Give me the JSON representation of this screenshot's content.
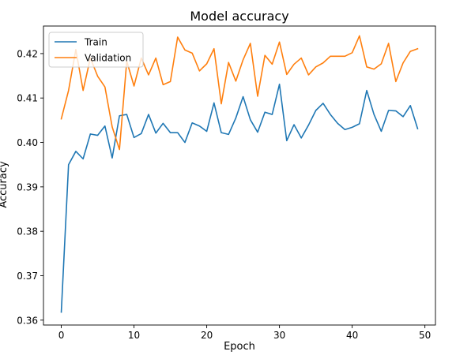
{
  "chart_data": {
    "type": "line",
    "title": "Model accuracy",
    "xlabel": "Epoch",
    "ylabel": "Accuracy",
    "xlim": [
      -2.45,
      51.45
    ],
    "ylim": [
      0.3589,
      0.4262
    ],
    "xticks": [
      0,
      10,
      20,
      30,
      40,
      50
    ],
    "yticks": [
      0.36,
      0.37,
      0.38,
      0.39,
      0.4,
      0.41,
      0.42
    ],
    "ytick_labels": [
      "0.36",
      "0.37",
      "0.38",
      "0.39",
      "0.40",
      "0.41",
      "0.42"
    ],
    "grid": false,
    "legend_position": "top-left",
    "x": [
      0,
      1,
      2,
      3,
      4,
      5,
      6,
      7,
      8,
      9,
      10,
      11,
      12,
      13,
      14,
      15,
      16,
      17,
      18,
      19,
      20,
      21,
      22,
      23,
      24,
      25,
      26,
      27,
      28,
      29,
      30,
      31,
      32,
      33,
      34,
      35,
      36,
      37,
      38,
      39,
      40,
      41,
      42,
      43,
      44,
      45,
      46,
      47,
      48,
      49
    ],
    "series": [
      {
        "name": "Train",
        "color": "#1f77b4",
        "values": [
          0.3618,
          0.395,
          0.398,
          0.3963,
          0.4019,
          0.4016,
          0.4037,
          0.3965,
          0.406,
          0.4063,
          0.4011,
          0.402,
          0.4063,
          0.4021,
          0.4043,
          0.4022,
          0.4022,
          0.4,
          0.4044,
          0.4037,
          0.4025,
          0.4089,
          0.4022,
          0.4018,
          0.4055,
          0.4103,
          0.4051,
          0.4023,
          0.4068,
          0.4063,
          0.4131,
          0.4004,
          0.404,
          0.401,
          0.4039,
          0.4072,
          0.4088,
          0.4063,
          0.4043,
          0.4029,
          0.4034,
          0.4042,
          0.4117,
          0.4063,
          0.4025,
          0.4072,
          0.4071,
          0.4058,
          0.4083,
          0.4031
        ]
      },
      {
        "name": "Validation",
        "color": "#ff7f0e",
        "values": [
          0.4053,
          0.4117,
          0.4209,
          0.4117,
          0.419,
          0.4149,
          0.4125,
          0.4035,
          0.3984,
          0.4183,
          0.4127,
          0.419,
          0.4152,
          0.419,
          0.413,
          0.4137,
          0.4237,
          0.4208,
          0.4201,
          0.4161,
          0.4177,
          0.4211,
          0.4087,
          0.418,
          0.4138,
          0.4186,
          0.4223,
          0.4104,
          0.4196,
          0.4176,
          0.4226,
          0.4153,
          0.4176,
          0.419,
          0.4152,
          0.417,
          0.4179,
          0.4194,
          0.4194,
          0.4194,
          0.4202,
          0.424,
          0.417,
          0.4165,
          0.4177,
          0.4223,
          0.4137,
          0.4179,
          0.4205,
          0.4211
        ]
      }
    ]
  }
}
